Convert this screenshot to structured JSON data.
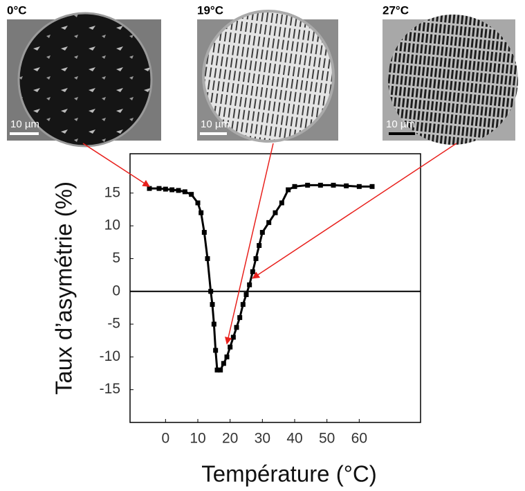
{
  "chart_data": {
    "type": "scatter",
    "x_label": "Température (°C)",
    "y_label": "Taux d’asymétrie (%)",
    "xlim": [
      -11,
      79
    ],
    "ylim": [
      -20,
      21
    ],
    "xticks": [
      0,
      10,
      20,
      30,
      40,
      50,
      60
    ],
    "yticks": [
      -15,
      -10,
      -5,
      0,
      5,
      10,
      15
    ],
    "zero_line": true,
    "color": "#000000",
    "x": [
      -5,
      -2,
      0,
      2,
      4,
      6,
      8,
      10,
      11,
      12,
      13,
      14,
      14.5,
      15,
      15.5,
      16,
      17,
      18,
      19,
      20,
      21,
      22,
      23,
      24,
      25,
      26,
      27,
      28,
      29,
      30,
      32,
      34,
      36,
      38,
      40,
      44,
      48,
      52,
      56,
      60,
      64
    ],
    "values": [
      15.7,
      15.7,
      15.6,
      15.5,
      15.4,
      15.2,
      14.8,
      13.5,
      12,
      9,
      5,
      0,
      -2,
      -5,
      -9,
      -12,
      -12,
      -11,
      -10,
      -8.5,
      -7,
      -5.5,
      -4,
      -2,
      -0.5,
      1,
      3,
      5,
      7,
      9,
      10.5,
      12,
      13.5,
      15.5,
      16,
      16.2,
      16.2,
      16.2,
      16.1,
      16,
      16
    ],
    "annotations": [
      {
        "text": "0°C",
        "scale_label": "10 µm",
        "x": -5,
        "y": 16,
        "arrow_color": "#e8201c"
      },
      {
        "text": "19°C",
        "scale_label": "10 µm",
        "x": 19,
        "y": -8,
        "arrow_color": "#e8201c"
      },
      {
        "text": "27°C",
        "scale_label": "10 µm",
        "x": 27,
        "y": 2,
        "arrow_color": "#e8201c"
      }
    ]
  }
}
